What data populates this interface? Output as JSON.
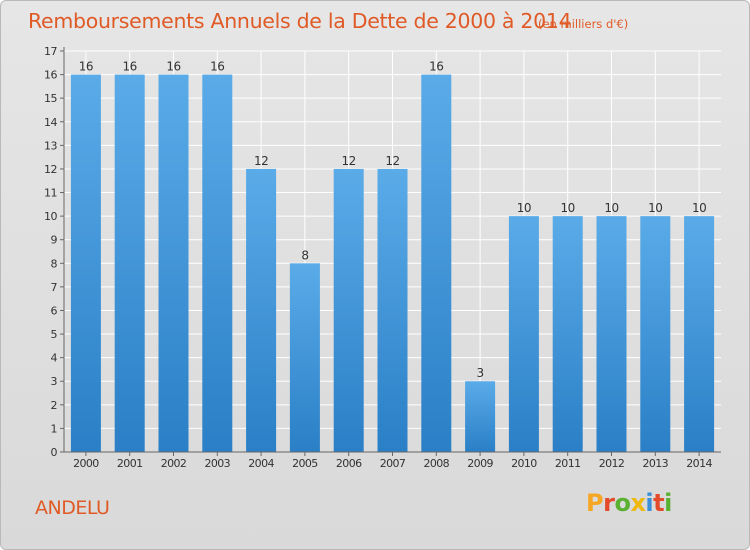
{
  "header": {
    "title": "Remboursements Annuels de la Dette de 2000 à 2014",
    "unit": "(en milliers d'€)"
  },
  "footer": {
    "city": "ANDELU",
    "logo_text": "Proxiti",
    "logo_colors": [
      "#f5a623",
      "#e34b2a",
      "#5ab031",
      "#f0b80c",
      "#3a8fd8",
      "#e34b2a",
      "#5ab031"
    ]
  },
  "colors": {
    "title": "#e05a26",
    "bar_light": "#5aabe8",
    "bar_dark": "#2a7fc6",
    "grid": "#ffffff"
  },
  "chart_data": {
    "type": "bar",
    "title": "Remboursements Annuels de la Dette de 2000 à 2014",
    "categories": [
      "2000",
      "2001",
      "2002",
      "2003",
      "2004",
      "2005",
      "2006",
      "2007",
      "2008",
      "2009",
      "2010",
      "2011",
      "2012",
      "2013",
      "2014"
    ],
    "values": [
      16,
      16,
      16,
      16,
      12,
      8,
      12,
      12,
      16,
      3,
      10,
      10,
      10,
      10,
      10
    ],
    "data_labels": [
      "16",
      "16",
      "16",
      "16",
      "12",
      "8",
      "12",
      "12",
      "16",
      "3",
      "10",
      "10",
      "10",
      "10",
      "10"
    ],
    "ylim": [
      0,
      17
    ],
    "yticks": [
      0,
      1,
      2,
      3,
      4,
      5,
      6,
      7,
      8,
      9,
      10,
      11,
      12,
      13,
      14,
      15,
      16,
      17
    ],
    "ytick_labels": [
      "0",
      "1",
      "2",
      "3",
      "4",
      "5",
      "6",
      "7",
      "8",
      "9",
      "10",
      "11",
      "12",
      "13",
      "14",
      "15",
      "16",
      "17"
    ],
    "grid": true
  }
}
